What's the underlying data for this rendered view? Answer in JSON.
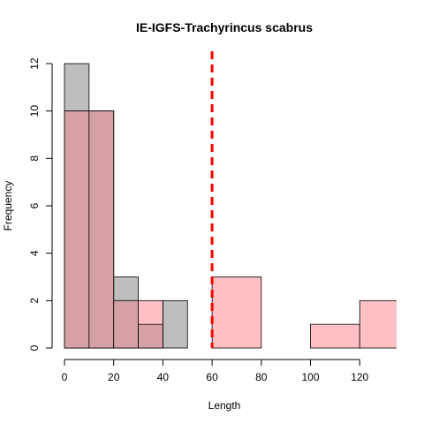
{
  "chart_data": {
    "type": "histogram",
    "title": "IE-IGFS-Trachyrincus scabrus",
    "xlabel": "Length",
    "ylabel": "Frequency",
    "xlim": [
      0,
      135
    ],
    "ylim": [
      0,
      12
    ],
    "x_ticks": [
      0,
      20,
      40,
      60,
      80,
      100,
      120
    ],
    "y_ticks": [
      0,
      2,
      4,
      6,
      8,
      10,
      12
    ],
    "series": [
      {
        "fill": "#bebebe",
        "bins": [
          {
            "from": 0,
            "to": 10,
            "count": 12
          },
          {
            "from": 10,
            "to": 20,
            "count": 10
          },
          {
            "from": 20,
            "to": 30,
            "count": 3
          },
          {
            "from": 30,
            "to": 40,
            "count": 1
          },
          {
            "from": 40,
            "to": 50,
            "count": 2
          }
        ]
      },
      {
        "fill": "#ffc0c5",
        "bins": [
          {
            "from": 0,
            "to": 10,
            "count": 10
          },
          {
            "from": 10,
            "to": 20,
            "count": 10
          },
          {
            "from": 20,
            "to": 30,
            "count": 2
          },
          {
            "from": 30,
            "to": 40,
            "count": 2
          },
          {
            "from": 60,
            "to": 80,
            "count": 3
          },
          {
            "from": 100,
            "to": 120,
            "count": 1
          },
          {
            "from": 120,
            "to": 140,
            "count": 2
          }
        ]
      }
    ],
    "overlap_fill": "#d5a1a5",
    "reference_line": {
      "x": 60,
      "color": "#ff0000",
      "style": "dashed"
    }
  }
}
